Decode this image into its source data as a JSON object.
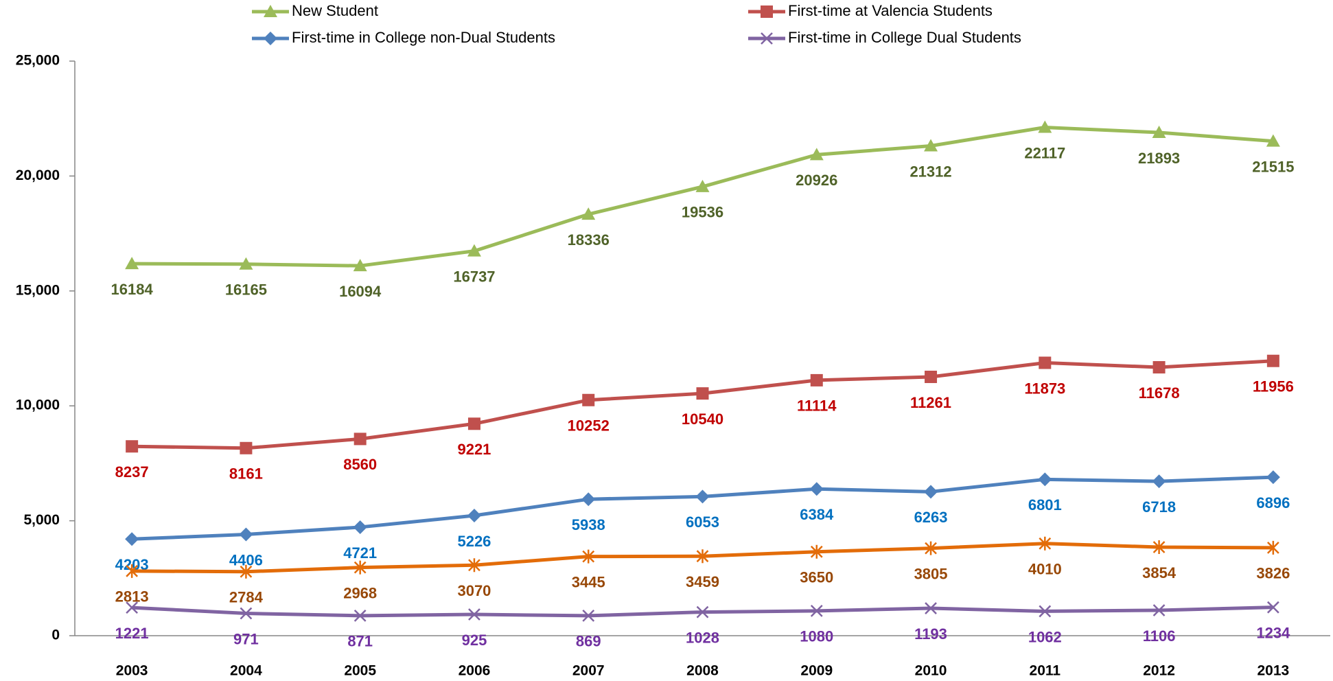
{
  "chart_data": {
    "type": "line",
    "categories": [
      "2003",
      "2004",
      "2005",
      "2006",
      "2007",
      "2008",
      "2009",
      "2010",
      "2011",
      "2012",
      "2013"
    ],
    "series": [
      {
        "name": "New Student",
        "color": "#9bbb59",
        "label_color": "#4f6228",
        "marker": "triangle",
        "values": [
          16184,
          16165,
          16094,
          16737,
          18336,
          19536,
          20926,
          21312,
          22117,
          21893,
          21515
        ]
      },
      {
        "name": "First-time at Valencia Students",
        "color": "#c0504d",
        "label_color": "#c00000",
        "marker": "square",
        "values": [
          8237,
          8161,
          8560,
          9221,
          10252,
          10540,
          11114,
          11261,
          11873,
          11678,
          11956
        ]
      },
      {
        "name": "First-time in College non-Dual Students",
        "color": "#4f81bd",
        "label_color": "#0070c0",
        "marker": "diamond",
        "values": [
          4203,
          4406,
          4721,
          5226,
          5938,
          6053,
          6384,
          6263,
          6801,
          6718,
          6896
        ]
      },
      {
        "color": "#e36c09",
        "label_color": "#984807",
        "marker": "asterisk",
        "values": [
          2813,
          2784,
          2968,
          3070,
          3445,
          3459,
          3650,
          3805,
          4010,
          3854,
          3826
        ]
      },
      {
        "name": "First-time in College Dual Students",
        "color": "#8064a2",
        "label_color": "#7030a0",
        "marker": "x",
        "values": [
          1221,
          971,
          871,
          925,
          869,
          1028,
          1080,
          1193,
          1062,
          1106,
          1234
        ]
      }
    ],
    "ylim": [
      0,
      25000
    ],
    "yticks": [
      0,
      {
        "value": 5000,
        "label": "5,000"
      },
      {
        "value": 10000,
        "label": "10,000"
      },
      {
        "value": 15000,
        "label": "15,000"
      },
      {
        "value": 20000,
        "label": "20,000"
      },
      {
        "value": 25000,
        "label": "25,000"
      }
    ],
    "grid": false
  }
}
